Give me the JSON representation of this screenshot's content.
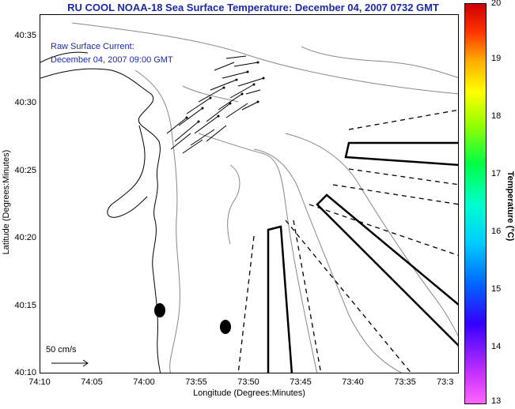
{
  "header": {
    "title": "RU COOL  NOAA-18  Sea Surface Temperature:  December 04, 2007 0732 GMT"
  },
  "currents": {
    "line1": "Raw Surface Current:",
    "line2": "December 04, 2007 09:00 GMT",
    "scale": "50 cm/s"
  },
  "axes": {
    "xlabel": "Longitude (Degrees:Minutes)",
    "ylabel": "Latitude (Degrees:Minutes)",
    "xticks": [
      "74:10",
      "74:05",
      "74:00",
      "73:55",
      "73:50",
      "73:45",
      "73:40",
      "73:35",
      "73:3"
    ],
    "yticks": [
      "40:35",
      "40:30",
      "40:25",
      "40:20",
      "40:15",
      "40:10"
    ]
  },
  "colorbar": {
    "label": "Temperature (°C)",
    "ticks": [
      "20",
      "19",
      "18",
      "17",
      "16",
      "15",
      "14",
      "13"
    ]
  }
}
